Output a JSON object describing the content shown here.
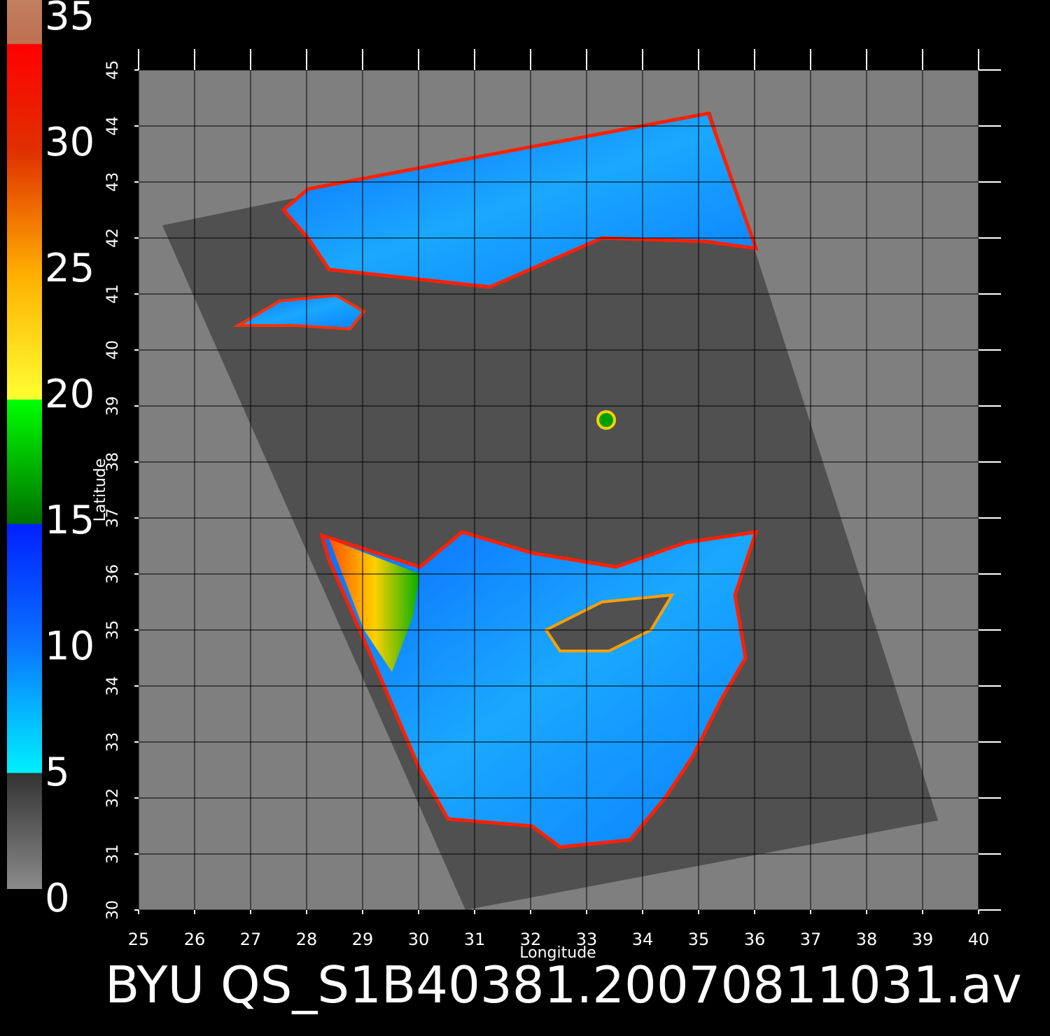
{
  "title": "BYU QS_S1B40381.20070811031.av",
  "map": {
    "x_label": "Longitude",
    "y_label": "Latitude",
    "xlim": [
      25,
      40
    ],
    "ylim": [
      30,
      45
    ],
    "xticks": [
      25,
      26,
      27,
      28,
      29,
      30,
      31,
      32,
      33,
      34,
      35,
      36,
      37,
      38,
      39,
      40
    ],
    "yticks": [
      30,
      31,
      32,
      33,
      34,
      35,
      36,
      37,
      38,
      39,
      40,
      41,
      42,
      43,
      44,
      45
    ]
  },
  "colorbar": {
    "lim": [
      0,
      35
    ],
    "ticks": [
      0,
      5,
      10,
      15,
      20,
      25,
      30,
      35
    ]
  }
}
